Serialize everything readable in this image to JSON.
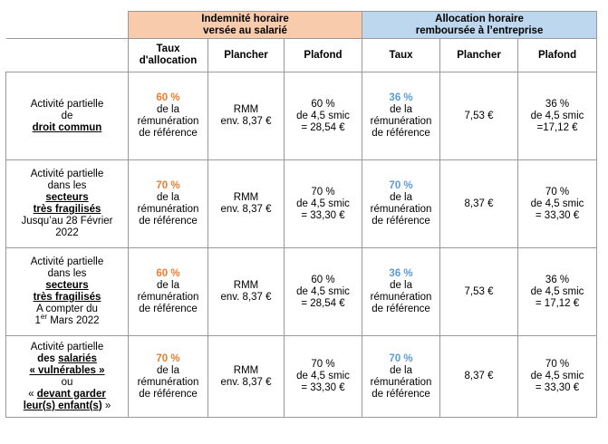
{
  "headers": {
    "group_salarie_line1": "Indemnité horaire",
    "group_salarie_line2": "versée au salarié",
    "group_entreprise_line1": "Allocation horaire",
    "group_entreprise_line2": "remboursée à l’entreprise",
    "taux_allocation_line1": "Taux",
    "taux_allocation_line2": "d'allocation",
    "plancher": "Plancher",
    "plafond": "Plafond",
    "taux": "Taux",
    "plancher2": "Plancher",
    "plafond2": "Plafond"
  },
  "colors": {
    "salarie_header_bg": "#f8cbad",
    "entreprise_header_bg": "#bdd7ee",
    "salarie_rate": "#ed7d31",
    "entreprise_rate": "#5b9bd5"
  },
  "common": {
    "de_la": "de la",
    "remuneration": "rémunération",
    "de_reference": "de référence",
    "rmm": "RMM",
    "env_prefix": "env.",
    "de_45_smic": "de 4,5 smic"
  },
  "rows": [
    {
      "label": {
        "l1": "Activité partielle",
        "l2": "de",
        "l3": "droit commun"
      },
      "salarie_taux": "60 %",
      "salarie_plancher": "8,37 €",
      "salarie_plafond_pct": "60 %",
      "salarie_plafond_value": "= 28,54 €",
      "entreprise_taux": "36 %",
      "entreprise_plancher": "7,53 €",
      "entreprise_plafond_pct": "36 %",
      "entreprise_plafond_value": "=17,12 €"
    },
    {
      "label": {
        "l1": "Activité partielle",
        "l2": "dans les",
        "l3": "secteurs",
        "l4": "très fragilisés",
        "l5": "Jusqu’au 28 Février",
        "l6": "2022"
      },
      "salarie_taux": "70 %",
      "salarie_plancher": "8,37 €",
      "salarie_plafond_pct": "70 %",
      "salarie_plafond_value": "= 33,30 €",
      "entreprise_taux": "70 %",
      "entreprise_plancher": "8,37 €",
      "entreprise_plafond_pct": "70 %",
      "entreprise_plafond_value": "= 33,30 €"
    },
    {
      "label": {
        "l1": "Activité partielle",
        "l2": "dans les",
        "l3": "secteurs",
        "l4": "très fragilisés",
        "l5": "A compter du",
        "l6_num": "1",
        "l6_sup": "er",
        "l6_rest": " Mars 2022"
      },
      "salarie_taux": "60 %",
      "salarie_plancher": "8,37 €",
      "salarie_plafond_pct": "60 %",
      "salarie_plafond_value": "= 28,54 €",
      "entreprise_taux": "36 %",
      "entreprise_plancher": "7,53 €",
      "entreprise_plafond_pct": "36 %",
      "entreprise_plafond_value": "= 17,12 €"
    },
    {
      "label": {
        "l1": "Activité partielle",
        "l2_prefix": "des ",
        "l2_u": "salariés",
        "l3": "« vulnérables »",
        "l4": "ou",
        "l5_prefix": "« ",
        "l5_u": "devant garder",
        "l6_u": "leur(s) enfant(s)",
        "l6_suffix": " »"
      },
      "salarie_taux": "70 %",
      "salarie_plancher": "8,37 €",
      "salarie_plafond_pct": "70 %",
      "salarie_plafond_value": "= 33,30 €",
      "entreprise_taux": "70 %",
      "entreprise_plancher": "8,37 €",
      "entreprise_plafond_pct": "70 %",
      "entreprise_plafond_value": "= 33,30 €"
    }
  ]
}
